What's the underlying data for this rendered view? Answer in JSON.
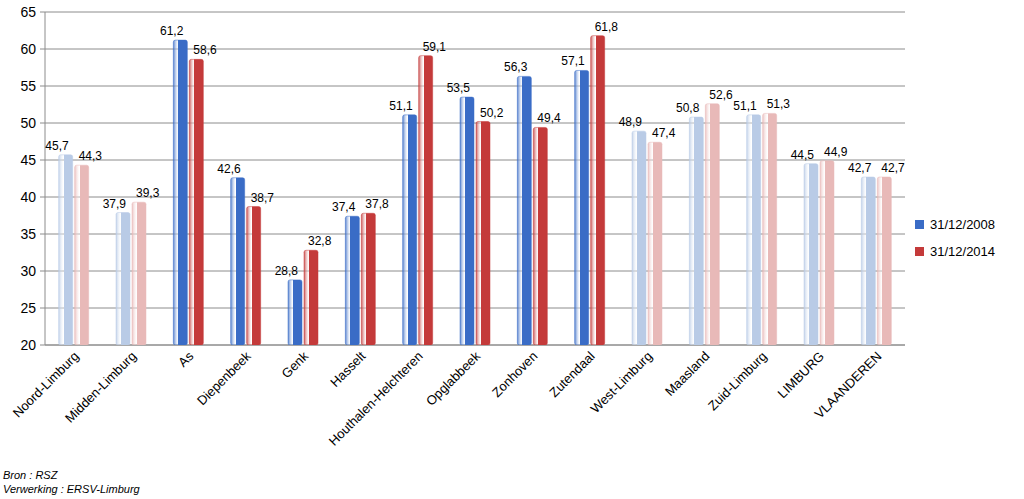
{
  "chart_data": {
    "type": "bar",
    "categories": [
      "Noord-Limburg",
      "Midden-Limburg",
      "As",
      "Diepenbeek",
      "Genk",
      "Hasselt",
      "Houthalen-Helchteren",
      "Opglabbeek",
      "Zonhoven",
      "Zutendaal",
      "West-Limburg",
      "Maasland",
      "Zuid-Limburg",
      "LIMBURG",
      "VLAANDEREN"
    ],
    "series": [
      {
        "name": "31/12/2008",
        "color": "#3a6cc6",
        "colors": [
          "#b9cbe6",
          "#b9cbe6",
          "#3a6cc6",
          "#3a6cc6",
          "#3a6cc6",
          "#3a6cc6",
          "#3a6cc6",
          "#3a6cc6",
          "#3a6cc6",
          "#3a6cc6",
          "#b9cbe6",
          "#b9cbe6",
          "#b9cbe6",
          "#b9cbe6",
          "#b9cbe6"
        ],
        "values": [
          45.7,
          37.9,
          61.2,
          42.6,
          28.8,
          37.4,
          51.1,
          53.5,
          56.3,
          57.1,
          48.9,
          50.8,
          51.1,
          44.5,
          42.7
        ],
        "value_labels": [
          "45,7",
          "37,9",
          "61,2",
          "42,6",
          "28,8",
          "37,4",
          "51,1",
          "53,5",
          "56,3",
          "57,1",
          "48,9",
          "50,8",
          "51,1",
          "44,5",
          "42,7"
        ]
      },
      {
        "name": "31/12/2014",
        "color": "#c43a3a",
        "colors": [
          "#e8b9b8",
          "#e8b9b8",
          "#c43a3a",
          "#c43a3a",
          "#c43a3a",
          "#c43a3a",
          "#c43a3a",
          "#c43a3a",
          "#c43a3a",
          "#c43a3a",
          "#e8b9b8",
          "#e8b9b8",
          "#e8b9b8",
          "#e8b9b8",
          "#e8b9b8"
        ],
        "values": [
          44.3,
          39.3,
          58.6,
          38.7,
          32.8,
          37.8,
          59.1,
          50.2,
          49.4,
          61.8,
          47.4,
          52.6,
          51.3,
          44.9,
          42.7
        ],
        "value_labels": [
          "44,3",
          "39,3",
          "58,6",
          "38,7",
          "32,8",
          "37,8",
          "59,1",
          "50,2",
          "49,4",
          "61,8",
          "47,4",
          "52,6",
          "51,3",
          "44,9",
          "42,7"
        ]
      }
    ],
    "ylim": [
      20,
      65
    ],
    "yticks": [
      20,
      25,
      30,
      35,
      40,
      45,
      50,
      55,
      60,
      65
    ],
    "grid": true,
    "data_labels": true,
    "legend": "right",
    "annotations": [
      "Bron : RSZ",
      "Verwerking : ERSV-Limburg"
    ]
  }
}
